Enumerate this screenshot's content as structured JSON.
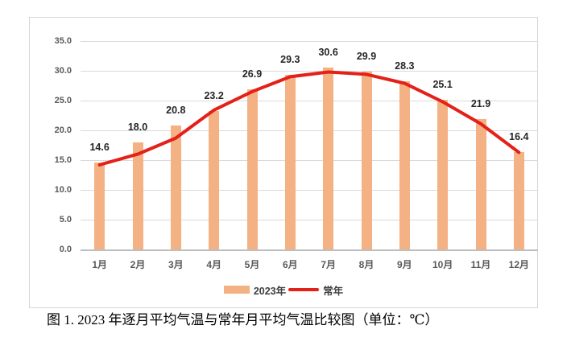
{
  "figure": {
    "caption": "图 1. 2023 年逐月平均气温与常年月平均气温比较图（单位：℃）"
  },
  "chart_data": {
    "type": "bar",
    "title": "",
    "xlabel": "",
    "ylabel": "",
    "categories": [
      "1月",
      "2月",
      "3月",
      "4月",
      "5月",
      "6月",
      "7月",
      "8月",
      "9月",
      "10月",
      "11月",
      "12月"
    ],
    "series": [
      {
        "name": "2023年",
        "type": "bar",
        "color": "#f4b183",
        "values": [
          14.6,
          18.0,
          20.8,
          23.2,
          26.9,
          29.3,
          30.6,
          29.9,
          28.3,
          25.1,
          21.9,
          16.4
        ],
        "data_labels": [
          "14.6",
          "18.0",
          "20.8",
          "23.2",
          "26.9",
          "29.3",
          "30.6",
          "29.9",
          "28.3",
          "25.1",
          "21.9",
          "16.4"
        ]
      },
      {
        "name": "常年",
        "type": "line",
        "color": "#e32119",
        "values": [
          14.2,
          16.0,
          18.7,
          23.4,
          26.5,
          29.0,
          29.8,
          29.4,
          27.9,
          24.8,
          21.1,
          16.3
        ]
      }
    ],
    "ylim": [
      0,
      35
    ],
    "ytick_step": 5,
    "yticks": [
      "0.0",
      "5.0",
      "10.0",
      "15.0",
      "20.0",
      "25.0",
      "30.0",
      "35.0"
    ],
    "grid": true,
    "legend_position": "bottom"
  }
}
